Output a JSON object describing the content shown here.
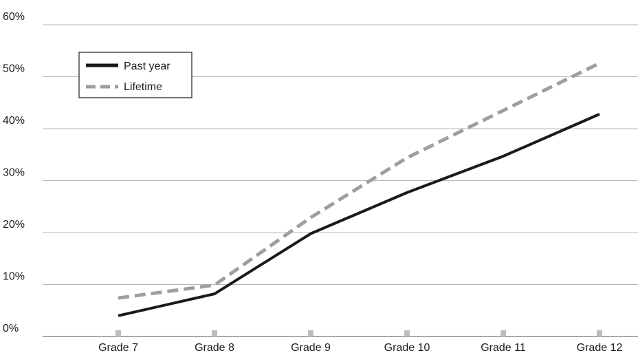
{
  "chart_data": {
    "type": "line",
    "categories": [
      "Grade 7",
      "Grade 8",
      "Grade 9",
      "Grade 10",
      "Grade 11",
      "Grade 12"
    ],
    "series": [
      {
        "name": "Past year",
        "values": [
          4,
          8.2,
          19.8,
          27.7,
          34.7,
          42.8
        ],
        "color": "#1a1a1a",
        "dash": "solid"
      },
      {
        "name": "Lifetime",
        "values": [
          7.4,
          9.9,
          22.9,
          34.4,
          43.5,
          52.6
        ],
        "color": "#9e9e9e",
        "dash": "dashed"
      }
    ],
    "yticks": [
      "0%",
      "10%",
      "20%",
      "30%",
      "40%",
      "50%",
      "60%"
    ],
    "ylim": [
      0,
      60
    ],
    "grid": true,
    "legend": "top-left",
    "title": "",
    "xlabel": "",
    "ylabel": ""
  }
}
